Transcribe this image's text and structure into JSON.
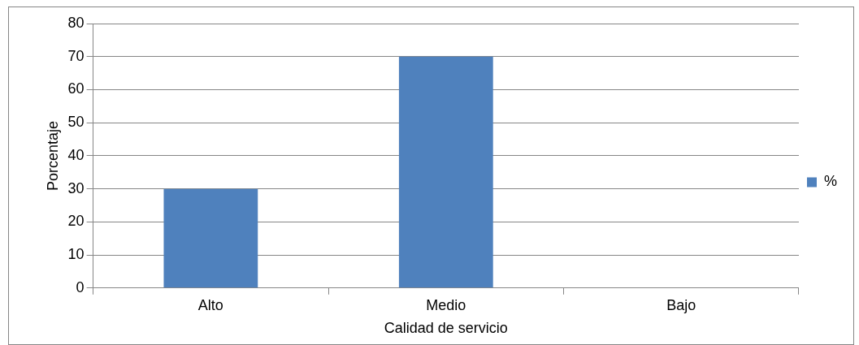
{
  "chart_data": {
    "type": "bar",
    "xlabel": "Calidad de servicio",
    "ylabel": "Porcentaje",
    "categories": [
      "Alto",
      "Medio",
      "Bajo"
    ],
    "series": [
      {
        "name": "%",
        "color": "#4f81bd",
        "values": [
          30,
          70,
          0
        ]
      }
    ],
    "ylim": [
      0,
      80
    ],
    "yticks": [
      0,
      10,
      20,
      30,
      40,
      50,
      60,
      70,
      80
    ],
    "grid": "y",
    "legend": "right"
  }
}
